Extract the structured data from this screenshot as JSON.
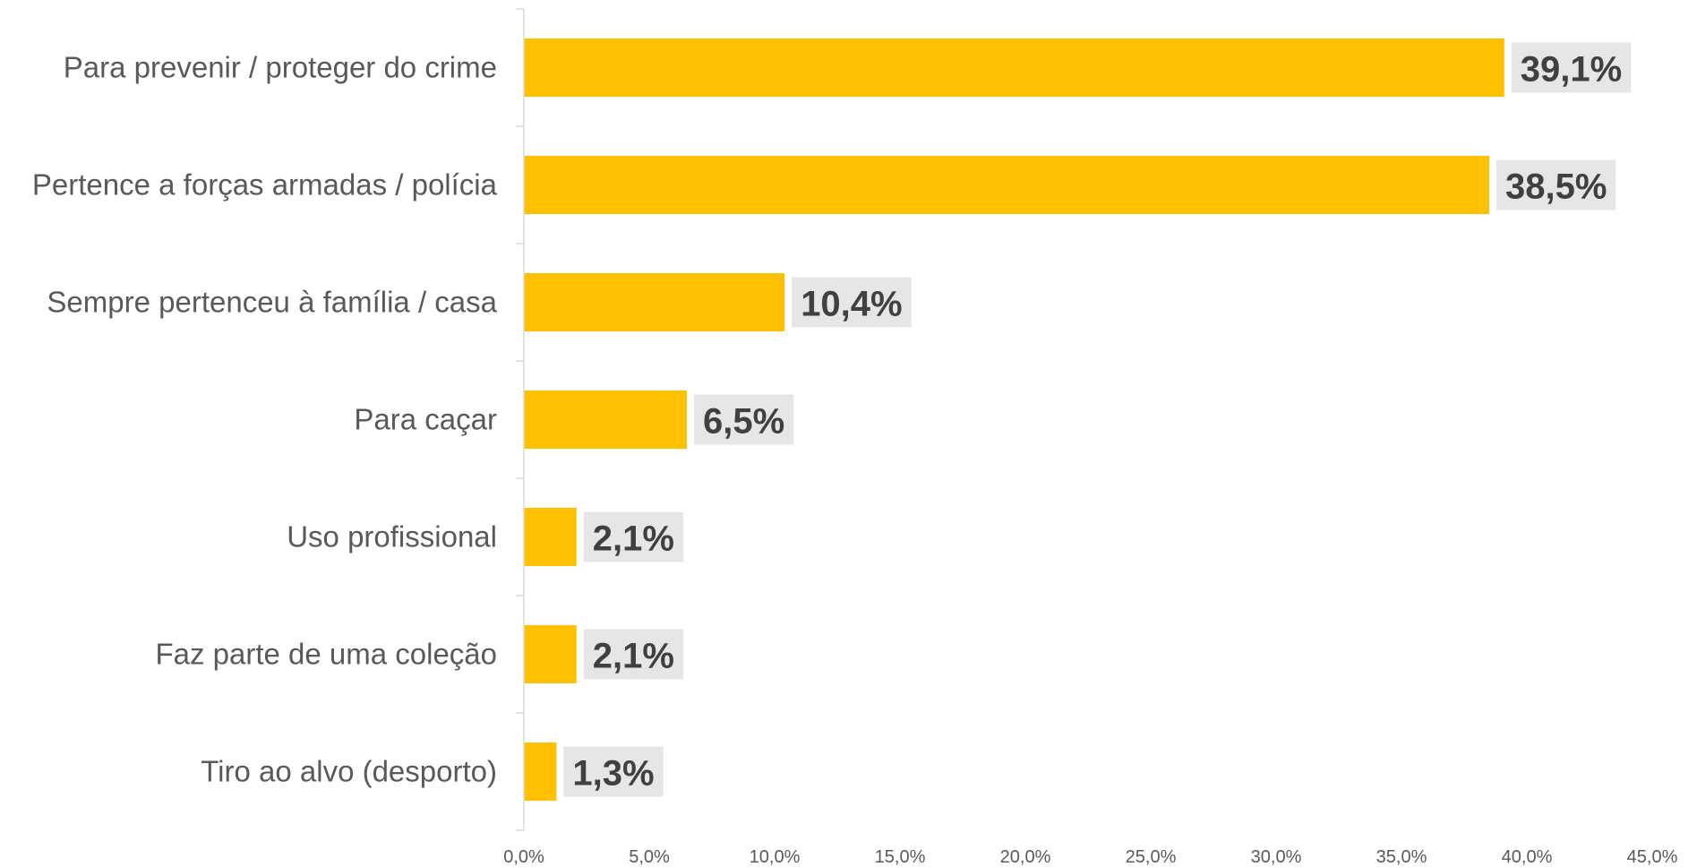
{
  "chart_data": {
    "type": "bar",
    "orientation": "horizontal",
    "categories": [
      "Para prevenir / proteger do crime",
      "Pertence a forças armadas / polícia",
      "Sempre pertenceu à família / casa",
      "Para caçar",
      "Uso profissional",
      "Faz parte de uma coleção",
      "Tiro ao alvo (desporto)"
    ],
    "values": [
      39.1,
      38.5,
      10.4,
      6.5,
      2.1,
      2.1,
      1.3
    ],
    "data_labels": [
      "39,1%",
      "38,5%",
      "10,4%",
      "6,5%",
      "2,1%",
      "2,1%",
      "1,3%"
    ],
    "x_ticks": [
      "0,0%",
      "5,0%",
      "10,0%",
      "15,0%",
      "20,0%",
      "25,0%",
      "30,0%",
      "35,0%",
      "40,0%",
      "45,0%"
    ],
    "xlim": [
      0,
      45
    ],
    "title": "",
    "xlabel": "",
    "ylabel": "",
    "grid": false,
    "legend": "none",
    "bar_color": "#FFC000",
    "label_bg_color": "#E6E6E6",
    "label_text_color": "#404040",
    "axis_color": "#D9D9D9"
  }
}
